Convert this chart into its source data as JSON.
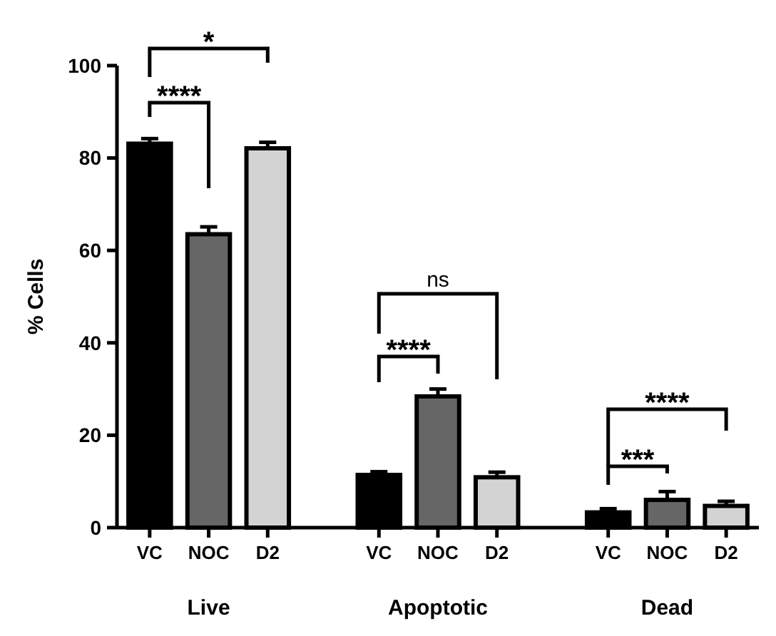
{
  "chart_data": {
    "type": "bar",
    "ylabel": "% Cells",
    "categories": [
      "Live",
      "Apoptotic",
      "Dead"
    ],
    "series": [
      {
        "name": "VC",
        "color": "#000000",
        "values": [
          83.1,
          11.4,
          3.3
        ],
        "errors": [
          1.1,
          0.7,
          0.8
        ]
      },
      {
        "name": "NOC",
        "color": "#666666",
        "values": [
          63.5,
          28.4,
          6.0
        ],
        "errors": [
          1.6,
          1.6,
          1.8
        ]
      },
      {
        "name": "D2",
        "color": "#d3d3d3",
        "values": [
          82.1,
          10.9,
          4.7
        ],
        "errors": [
          1.3,
          1.1,
          1.0
        ]
      }
    ],
    "ylim": [
      0,
      100
    ],
    "yticks": [
      0,
      20,
      40,
      60,
      80,
      100
    ],
    "grid": false,
    "legend": "bottom",
    "annotations": [
      "****",
      "*",
      "****",
      "ns",
      "***",
      "****"
    ]
  }
}
